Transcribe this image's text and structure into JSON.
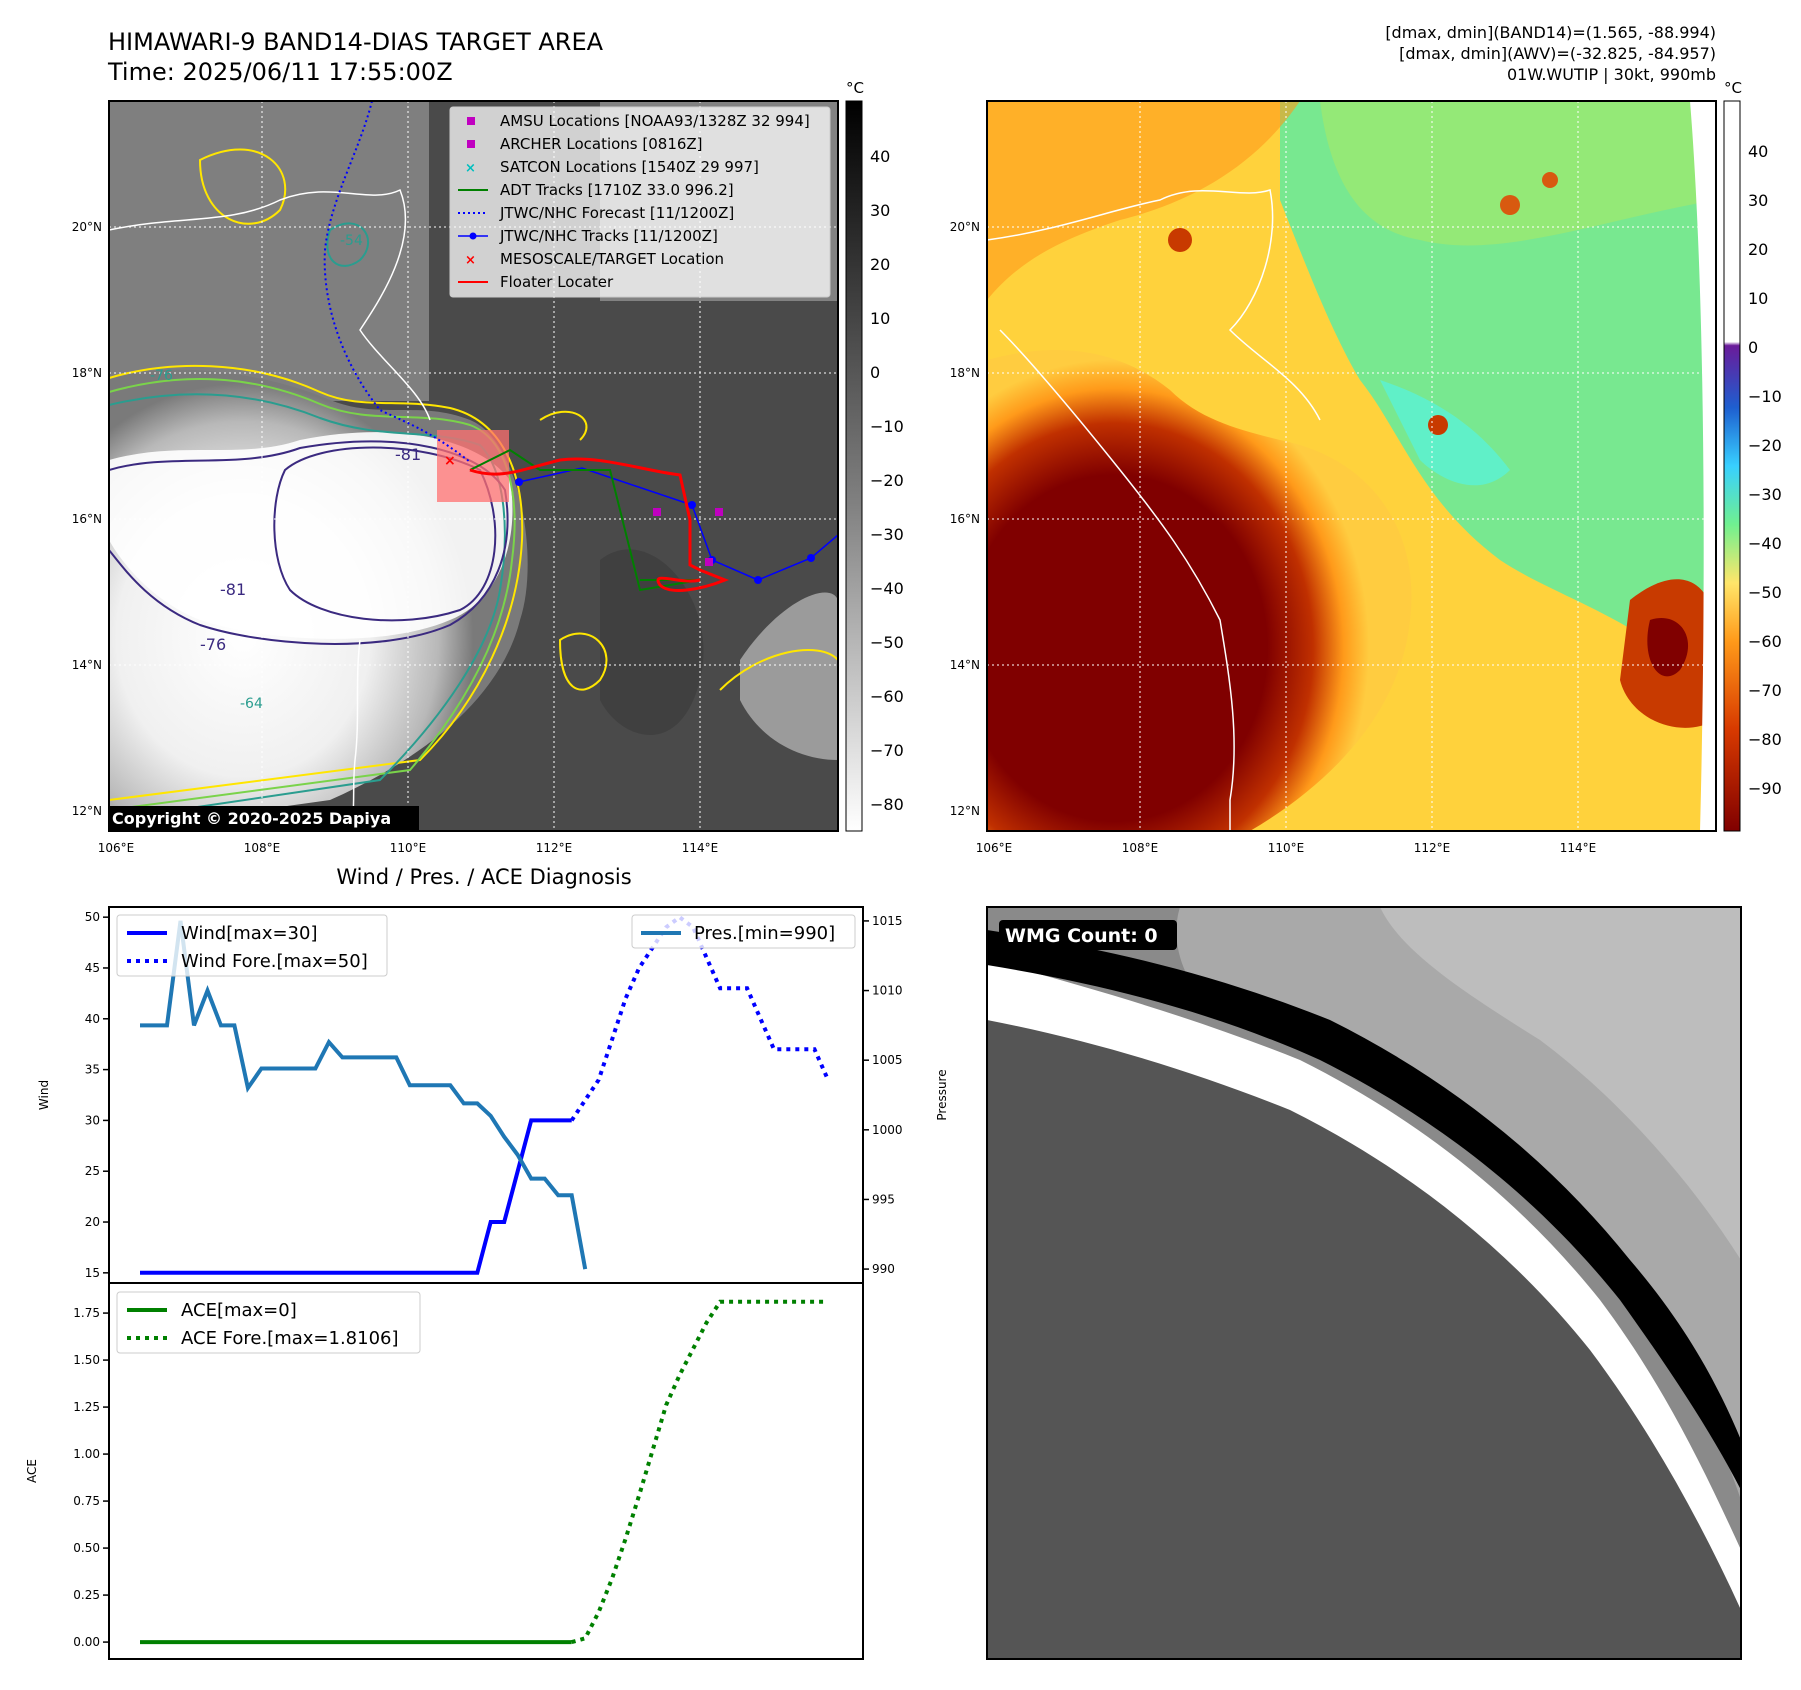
{
  "header": {
    "title": "HIMAWARI-9 BAND14-DIAS TARGET AREA",
    "time": "Time: 2025/06/11 17:55:00Z",
    "info_line1": "[dmax, dmin](BAND14)=(1.565, -88.994)",
    "info_line2": "[dmax, dmin](AWV)=(-32.825, -84.957)",
    "info_line3": "01W.WUTIP | 30kt, 990mb"
  },
  "map_axes": {
    "lat_labels": [
      "20°N",
      "18°N",
      "16°N",
      "14°N",
      "12°N"
    ],
    "lon_labels": [
      "106°E",
      "108°E",
      "110°E",
      "112°E",
      "114°E"
    ]
  },
  "map_left": {
    "copyright": "Copyright © 2020-2025 Dapiya",
    "contour_labels": [
      "-54",
      "-76",
      "-81",
      "-81",
      "-76",
      "-64"
    ],
    "legend": [
      {
        "label": "AMSU Locations [NOAA93/1328Z 32 994]",
        "marker": "square",
        "color": "#c000c0"
      },
      {
        "label": "ARCHER Locations [0816Z]",
        "marker": "square",
        "color": "#c000c0"
      },
      {
        "label": "SATCON Locations [1540Z 29 997]",
        "marker": "x",
        "color": "#00bfbf"
      },
      {
        "label": "ADT Tracks [1710Z 33.0 996.2]",
        "marker": "line",
        "color": "#008000"
      },
      {
        "label": "JTWC/NHC Forecast [11/1200Z]",
        "marker": "dotted",
        "color": "#0000ff"
      },
      {
        "label": "JTWC/NHC Tracks [11/1200Z]",
        "marker": "line-dot",
        "color": "#0000ff"
      },
      {
        "label": "MESOSCALE/TARGET Location",
        "marker": "x",
        "color": "#ff0000"
      },
      {
        "label": "Floater Locater",
        "marker": "line",
        "color": "#ff0000"
      }
    ],
    "colorbar_unit": "°C",
    "colorbar_ticks": [
      "40",
      "30",
      "20",
      "10",
      "0",
      "−10",
      "−20",
      "−30",
      "−40",
      "−50",
      "−60",
      "−70",
      "−80"
    ]
  },
  "map_right": {
    "colorbar_unit": "°C",
    "colorbar_ticks": [
      "40",
      "30",
      "20",
      "10",
      "0",
      "−10",
      "−20",
      "−30",
      "−40",
      "−50",
      "−60",
      "−70",
      "−80",
      "−90"
    ]
  },
  "wmg": {
    "label": "WMG Count: 0"
  },
  "colors": {
    "wind": "#0000ff",
    "pressure": "#1f77b4",
    "ace": "#008000",
    "cold_core": "#800000",
    "floater": "#ff0000"
  },
  "chart_data": {
    "type": "line",
    "title": "Wind / Pres. / ACE Diagnosis",
    "upper": {
      "ylabel": "Wind",
      "ylabel_right": "Pressure",
      "ylim": [
        14,
        51
      ],
      "y2lim": [
        989,
        1016
      ],
      "yticks": [
        "50",
        "45",
        "40",
        "35",
        "30",
        "25",
        "20",
        "15"
      ],
      "y2ticks": [
        "1015",
        "1010",
        "1005",
        "1000",
        "995",
        "990"
      ],
      "legend_left": [
        "Wind[max=30]",
        "Wind Fore.[max=50]"
      ],
      "legend_right": [
        "Pres.[min=990]"
      ],
      "wind": [
        15,
        15,
        15,
        15,
        15,
        15,
        15,
        15,
        15,
        15,
        15,
        15,
        15,
        15,
        15,
        15,
        15,
        15,
        15,
        15,
        15,
        15,
        15,
        15,
        15,
        15,
        20,
        20,
        25,
        30,
        30,
        30,
        30
      ],
      "wind_fore": [
        null,
        null,
        null,
        null,
        null,
        null,
        null,
        null,
        null,
        null,
        null,
        null,
        null,
        null,
        null,
        null,
        null,
        null,
        null,
        null,
        null,
        null,
        null,
        null,
        null,
        null,
        null,
        null,
        null,
        null,
        null,
        null,
        30,
        32,
        34,
        38,
        42,
        45,
        47,
        49,
        50,
        49,
        46,
        43,
        43,
        43,
        40,
        37,
        37,
        37,
        37,
        34
      ],
      "pressure": [
        1007.5,
        1007.5,
        1007.5,
        1015,
        1007.5,
        1010,
        1007.5,
        1007.5,
        1003,
        1004.4,
        1004.4,
        1004.4,
        1004.4,
        1004.4,
        1006.3,
        1005.2,
        1005.2,
        1005.2,
        1005.2,
        1005.2,
        1003.2,
        1003.2,
        1003.2,
        1003.2,
        1001.9,
        1001.9,
        1001,
        999.5,
        998.2,
        996.5,
        996.5,
        995.3,
        995.3,
        990
      ]
    },
    "lower": {
      "ylabel": "ACE",
      "ylim": [
        -0.09,
        1.91
      ],
      "yticks": [
        "1.75",
        "1.50",
        "1.25",
        "1.00",
        "0.75",
        "0.50",
        "0.25",
        "0.00"
      ],
      "legend": [
        "ACE[max=0]",
        "ACE Fore.[max=1.8106]"
      ],
      "ace": [
        0,
        0,
        0,
        0,
        0,
        0,
        0,
        0,
        0,
        0,
        0,
        0,
        0,
        0,
        0,
        0,
        0,
        0,
        0,
        0,
        0,
        0,
        0,
        0,
        0,
        0,
        0,
        0,
        0,
        0,
        0,
        0,
        0
      ],
      "ace_fore": [
        null,
        null,
        null,
        null,
        null,
        null,
        null,
        null,
        null,
        null,
        null,
        null,
        null,
        null,
        null,
        null,
        null,
        null,
        null,
        null,
        null,
        null,
        null,
        null,
        null,
        null,
        null,
        null,
        null,
        null,
        null,
        null,
        0,
        0.02,
        0.16,
        0.34,
        0.55,
        0.78,
        1.02,
        1.26,
        1.42,
        1.56,
        1.7,
        1.81,
        1.81,
        1.81,
        1.81,
        1.81,
        1.81,
        1.81,
        1.81,
        1.81
      ]
    }
  }
}
